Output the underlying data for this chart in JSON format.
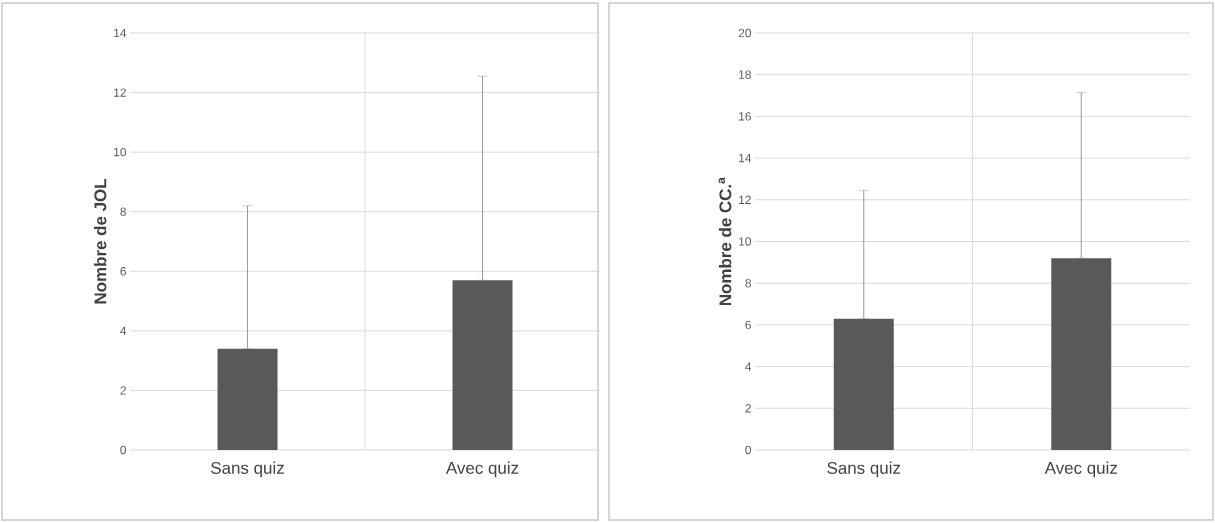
{
  "chart_data": [
    {
      "type": "bar",
      "ylabel": "Nombre de JOL",
      "categories": [
        "Sans quiz",
        "Avec quiz"
      ],
      "values": [
        3.4,
        5.7
      ],
      "color": "#595959",
      "errors": [
        [
          3.4,
          8.2
        ],
        [
          5.7,
          12.55
        ]
      ],
      "ylim": [
        0,
        14
      ],
      "yticks": [
        0,
        2,
        4,
        6,
        8,
        10,
        12,
        14
      ],
      "grid": true
    },
    {
      "type": "bar",
      "ylabel": "Nombre  de CC.$^{a}$",
      "categories": [
        "Sans quiz",
        "Avec quiz"
      ],
      "values": [
        6.3,
        9.2
      ],
      "color": "#595959",
      "errors": [
        [
          6.3,
          12.45
        ],
        [
          9.2,
          17.15
        ]
      ],
      "ylim": [
        0,
        20
      ],
      "yticks": [
        0,
        2,
        4,
        6,
        8,
        10,
        12,
        14,
        16,
        18,
        20
      ],
      "grid": true
    }
  ]
}
